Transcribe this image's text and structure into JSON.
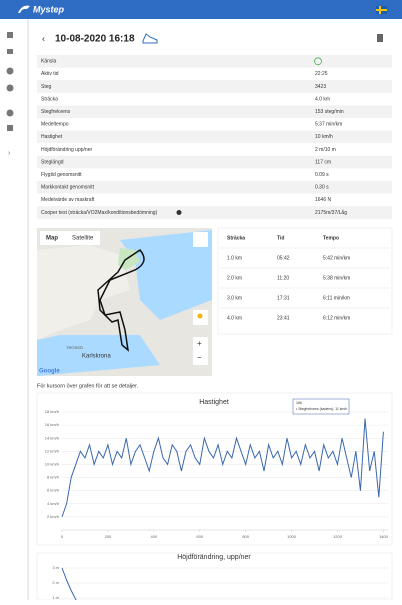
{
  "app": {
    "brand": "Mystep"
  },
  "header": {
    "title": "10-08-2020 16:18"
  },
  "stats": [
    [
      "Känsla"
    ],
    [
      "Aktiv tid",
      "22:25"
    ],
    [
      "Steg",
      "3423"
    ],
    [
      "Sträcka",
      "4.0 km"
    ],
    [
      "Stegfrekvens",
      "153 steg/min"
    ],
    [
      "Medeltempo",
      "5:37 min/km"
    ],
    [
      "Hastighet",
      "10 km/h"
    ],
    [
      "Höjdförändring upp/ner",
      "2 m/10 m"
    ],
    [
      "Steglängd",
      "117 cm"
    ],
    [
      "Flygtid genomsnitt",
      "0.09 s"
    ],
    [
      "Markkontakt genomsnitt",
      "0.30 s"
    ],
    [
      "Medelvärde av maskraft",
      "1646 N"
    ],
    [
      "Cooper test (sträcka/VO2Max/konditionsbedömning)",
      "2175m/37/Låg"
    ]
  ],
  "map": {
    "tabs": [
      "Map",
      "Satellite"
    ],
    "places": [
      "Karlskrona",
      "TROSSÖ"
    ],
    "provider": "Google"
  },
  "splits": {
    "headers": [
      "Sträcka",
      "Tid",
      "Tempo"
    ],
    "rows": [
      [
        "1.0 km",
        "05:42",
        "5:42 min/km"
      ],
      [
        "2.0 km",
        "11:20",
        "5:38 min/km"
      ],
      [
        "3.0 km",
        "17:31",
        "6:11 min/km"
      ],
      [
        "4.0 km",
        "23:41",
        "6:12 min/km"
      ]
    ]
  },
  "hint": "För kursorn över grafen för att se detaljer.",
  "chart_data": [
    {
      "type": "line",
      "title": "Hastighet",
      "color": "#3a67ad",
      "x": [
        0,
        20,
        40,
        60,
        80,
        100,
        120,
        140,
        160,
        180,
        200,
        220,
        240,
        260,
        280,
        300,
        320,
        340,
        360,
        380,
        400,
        420,
        440,
        460,
        480,
        500,
        520,
        540,
        560,
        580,
        600,
        620,
        640,
        660,
        680,
        700,
        720,
        740,
        760,
        780,
        800,
        820,
        840,
        860,
        880,
        900,
        920,
        940,
        960,
        980,
        1000,
        1020,
        1040,
        1060,
        1080,
        1100,
        1120,
        1140,
        1160,
        1180,
        1200,
        1220,
        1240,
        1260,
        1280,
        1300,
        1320,
        1340,
        1360,
        1380,
        1400
      ],
      "values": [
        2,
        4,
        8,
        10,
        12,
        11,
        13,
        10,
        12,
        11,
        13,
        10,
        12,
        11,
        14,
        10,
        12,
        13,
        11,
        9,
        12,
        14,
        11,
        10,
        13,
        12,
        9,
        12,
        13,
        11,
        10,
        14,
        12,
        11,
        13,
        10,
        12,
        11,
        14,
        12,
        10,
        13,
        11,
        12,
        9,
        13,
        11,
        12,
        10,
        14,
        11,
        12,
        10,
        13,
        11,
        12,
        9,
        13,
        11,
        12,
        10,
        14,
        11,
        8,
        12,
        6,
        17,
        9,
        12,
        5,
        15
      ],
      "xlim": [
        0,
        1420
      ],
      "ylim": [
        0,
        18
      ],
      "xticks": [
        0,
        200,
        400,
        600,
        800,
        1000,
        1200,
        1400
      ],
      "yticks": [
        {
          "value": 2,
          "label": "2 km/h"
        },
        {
          "value": 4,
          "label": "4 km/h"
        },
        {
          "value": 6,
          "label": "6 km/h"
        },
        {
          "value": 8,
          "label": "8 km/h"
        },
        {
          "value": 10,
          "label": "10 km/h"
        },
        {
          "value": 12,
          "label": "12 km/h"
        },
        {
          "value": 14,
          "label": "14 km/h"
        },
        {
          "value": 16,
          "label": "16 km/h"
        },
        {
          "value": 18,
          "label": "18 km/h"
        }
      ],
      "grid": true,
      "tooltip": {
        "title": "166",
        "text": "• Stegfrekvens (kadens): 11 km/h"
      }
    },
    {
      "type": "line",
      "title": "Höjdförändring, upp/ner",
      "color": "#3a67ad",
      "x": [
        0,
        20,
        40,
        60,
        80,
        100
      ],
      "values": [
        3,
        2.2,
        1.5,
        0.9,
        0.5,
        0.3
      ],
      "xlim": [
        0,
        1420
      ],
      "ylim": [
        0,
        3
      ],
      "yticks": [
        {
          "value": 1,
          "label": "1 m"
        },
        {
          "value": 2,
          "label": "2 m"
        },
        {
          "value": 3,
          "label": "3 m"
        }
      ],
      "grid": true
    }
  ]
}
